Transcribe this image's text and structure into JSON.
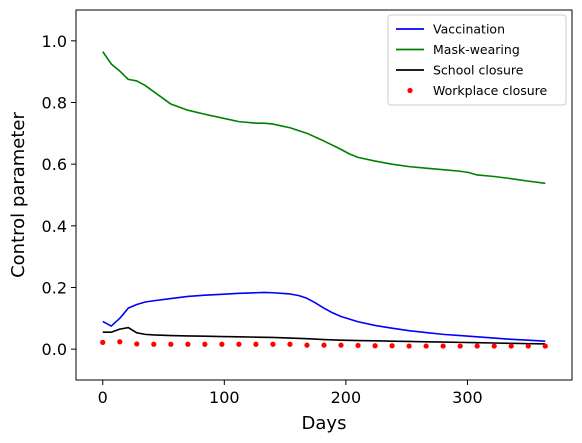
{
  "chart_data": {
    "type": "line",
    "title": "",
    "xlabel": "Days",
    "ylabel": "Control parameter",
    "xlim": [
      -22,
      386
    ],
    "ylim": [
      -0.1,
      1.1
    ],
    "xticks": [
      0,
      100,
      200,
      300
    ],
    "yticks": [
      0.0,
      0.2,
      0.4,
      0.6,
      0.8,
      1.0
    ],
    "xtick_labels": [
      "0",
      "100",
      "200",
      "300"
    ],
    "ytick_labels": [
      "0.0",
      "0.2",
      "0.4",
      "0.6",
      "0.8",
      "1.0"
    ],
    "grid": false,
    "legend_position": "top-right",
    "series": [
      {
        "name": "Vaccination",
        "kind": "line",
        "color": "#0000ff",
        "x": [
          0,
          7,
          14,
          21,
          28,
          35,
          42,
          56,
          70,
          84,
          98,
          112,
          126,
          133,
          140,
          154,
          161,
          168,
          175,
          182,
          189,
          196,
          210,
          224,
          238,
          252,
          266,
          280,
          294,
          308,
          322,
          336,
          350,
          364
        ],
        "y": [
          0.09,
          0.075,
          0.1,
          0.133,
          0.145,
          0.153,
          0.157,
          0.164,
          0.171,
          0.175,
          0.178,
          0.181,
          0.183,
          0.184,
          0.183,
          0.179,
          0.174,
          0.165,
          0.15,
          0.133,
          0.118,
          0.106,
          0.089,
          0.077,
          0.068,
          0.06,
          0.054,
          0.048,
          0.044,
          0.04,
          0.036,
          0.032,
          0.029,
          0.026
        ]
      },
      {
        "name": "Mask-wearing",
        "kind": "line",
        "color": "#008000",
        "x": [
          0,
          7,
          14,
          21,
          28,
          35,
          42,
          56,
          70,
          84,
          98,
          112,
          126,
          133,
          140,
          154,
          168,
          182,
          196,
          203,
          210,
          224,
          238,
          252,
          266,
          280,
          294,
          301,
          308,
          322,
          336,
          350,
          364
        ],
        "y": [
          0.965,
          0.925,
          0.902,
          0.875,
          0.87,
          0.855,
          0.835,
          0.795,
          0.775,
          0.762,
          0.75,
          0.738,
          0.733,
          0.733,
          0.73,
          0.718,
          0.7,
          0.675,
          0.648,
          0.633,
          0.622,
          0.61,
          0.6,
          0.592,
          0.587,
          0.582,
          0.577,
          0.573,
          0.565,
          0.56,
          0.553,
          0.545,
          0.538
        ]
      },
      {
        "name": "School closure",
        "kind": "line",
        "color": "#000000",
        "x": [
          0,
          7,
          14,
          21,
          28,
          35,
          42,
          56,
          70,
          84,
          98,
          112,
          126,
          140,
          154,
          168,
          182,
          196,
          210,
          224,
          238,
          252,
          266,
          280,
          294,
          308,
          322,
          336,
          350,
          364
        ],
        "y": [
          0.055,
          0.055,
          0.065,
          0.07,
          0.053,
          0.048,
          0.046,
          0.044,
          0.043,
          0.042,
          0.041,
          0.04,
          0.039,
          0.038,
          0.036,
          0.034,
          0.031,
          0.029,
          0.028,
          0.027,
          0.026,
          0.025,
          0.024,
          0.023,
          0.022,
          0.021,
          0.02,
          0.019,
          0.018,
          0.017
        ]
      },
      {
        "name": "Workplace closure",
        "kind": "scatter",
        "color": "#ff0000",
        "x": [
          0,
          14,
          28,
          42,
          56,
          70,
          84,
          98,
          112,
          126,
          140,
          154,
          168,
          182,
          196,
          210,
          224,
          238,
          252,
          266,
          280,
          294,
          308,
          322,
          336,
          350,
          364
        ],
        "y": [
          0.022,
          0.024,
          0.017,
          0.016,
          0.016,
          0.016,
          0.016,
          0.016,
          0.016,
          0.016,
          0.016,
          0.016,
          0.013,
          0.013,
          0.013,
          0.012,
          0.011,
          0.011,
          0.01,
          0.01,
          0.01,
          0.01,
          0.01,
          0.01,
          0.01,
          0.01,
          0.01
        ]
      }
    ]
  }
}
